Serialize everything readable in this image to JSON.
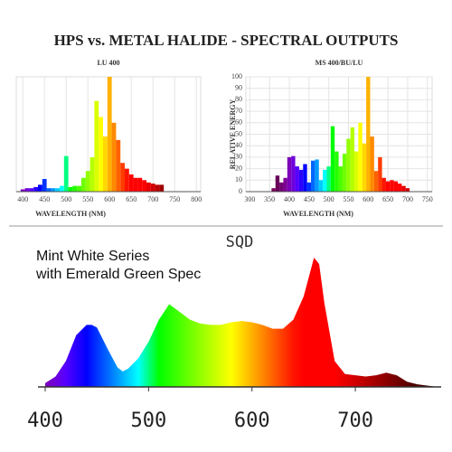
{
  "title": "HPS vs. METAL HALIDE - SPECTRAL OUTPUTS",
  "chart_data": [
    {
      "type": "bar",
      "title": "LU 400",
      "xlabel": "WAVELENGTH (NM)",
      "xlim": [
        385,
        810
      ],
      "xticks": [
        400,
        450,
        500,
        550,
        600,
        650,
        700,
        750,
        800
      ],
      "ylim": [
        0,
        100
      ],
      "grid": true,
      "x": [
        400,
        410,
        420,
        430,
        440,
        450,
        460,
        470,
        480,
        490,
        500,
        510,
        520,
        530,
        540,
        550,
        560,
        570,
        580,
        590,
        600,
        610,
        620,
        630,
        640,
        650,
        660,
        670,
        680,
        690,
        700,
        710,
        720
      ],
      "values": [
        2,
        3,
        3,
        4,
        6,
        11,
        3,
        3,
        3,
        5,
        31,
        4,
        5,
        5,
        12,
        18,
        30,
        79,
        65,
        48,
        100,
        60,
        45,
        25,
        20,
        15,
        12,
        12,
        10,
        8,
        7,
        6,
        6
      ]
    },
    {
      "type": "bar",
      "title": "MS 400/BU/LU",
      "xlabel": "WAVELENGTH (NM)",
      "ylabel": "RELATIVE ENERGY",
      "xlim": [
        290,
        762
      ],
      "xticks": [
        300,
        350,
        400,
        450,
        500,
        550,
        600,
        650,
        700,
        750
      ],
      "ylim": [
        0,
        100
      ],
      "yticks": [
        0,
        10,
        20,
        30,
        40,
        50,
        60,
        70,
        80,
        90,
        100
      ],
      "grid": true,
      "x": [
        360,
        370,
        380,
        390,
        400,
        410,
        420,
        430,
        440,
        450,
        460,
        470,
        480,
        490,
        500,
        510,
        520,
        530,
        540,
        550,
        560,
        570,
        580,
        590,
        600,
        610,
        620,
        630,
        640,
        650,
        660,
        670,
        680,
        690,
        700
      ],
      "values": [
        3,
        14,
        8,
        12,
        30,
        31,
        22,
        19,
        24,
        8,
        27,
        28,
        10,
        19,
        22,
        57,
        35,
        22,
        33,
        46,
        56,
        35,
        60,
        42,
        100,
        48,
        18,
        30,
        12,
        9,
        10,
        9,
        7,
        5,
        3
      ]
    },
    {
      "type": "area",
      "title": "SQD",
      "annotation": "Mint White Series with Emerald Green Spec",
      "xlim": [
        393,
        783
      ],
      "xticks": [
        400,
        500,
        600,
        700
      ],
      "ylim": [
        0,
        100
      ],
      "x": [
        400,
        410,
        420,
        430,
        440,
        445,
        450,
        460,
        470,
        475,
        480,
        490,
        500,
        510,
        520,
        530,
        540,
        550,
        560,
        570,
        580,
        590,
        600,
        610,
        620,
        630,
        640,
        650,
        655,
        660,
        665,
        670,
        680,
        690,
        700,
        710,
        720,
        730,
        740,
        750,
        760,
        770,
        780
      ],
      "values": [
        3,
        8,
        20,
        40,
        48,
        48,
        46,
        30,
        15,
        12,
        14,
        22,
        35,
        52,
        64,
        58,
        52,
        49,
        48,
        48,
        50,
        51,
        50,
        48,
        45,
        45,
        52,
        70,
        85,
        100,
        95,
        65,
        20,
        10,
        9,
        8,
        9,
        11,
        9,
        4,
        2,
        1,
        0
      ]
    }
  ]
}
